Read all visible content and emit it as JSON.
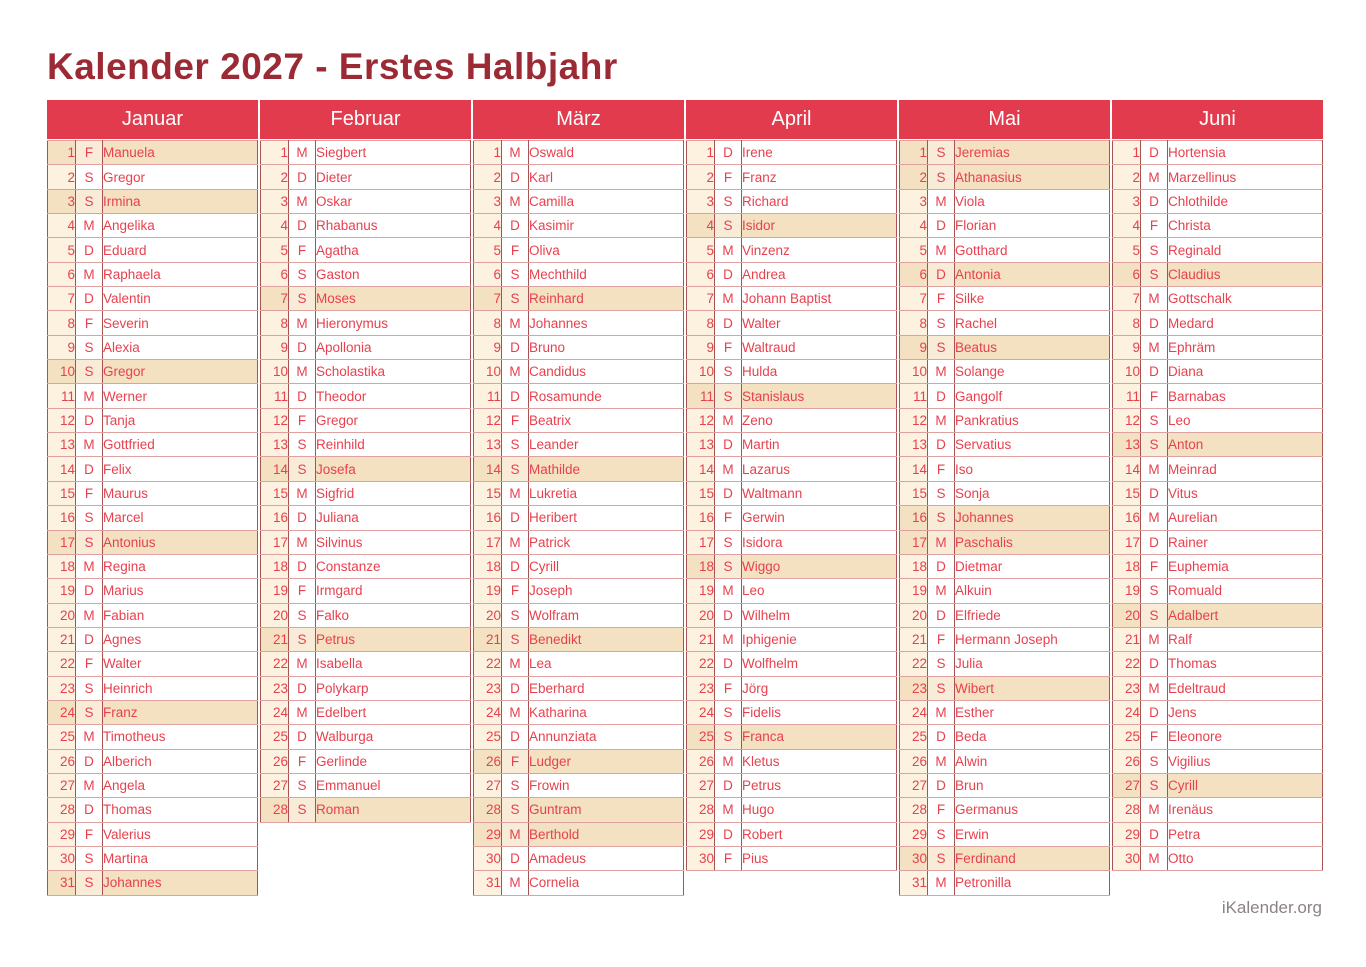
{
  "title": "Kalender 2027 - Erstes Halbjahr",
  "footer": "iKalender.org",
  "colors": {
    "header_bg": "#e23b4e",
    "title_text": "#9c2a34",
    "day_text": "#e8414e",
    "weekend_row_bg": "#f3e1c1",
    "number_column_bg": "#fcf2df",
    "grid_border": "#a95252",
    "footer_text": "#8b8382"
  },
  "months": [
    {
      "name": "Januar",
      "days": [
        {
          "d": 1,
          "w": "F",
          "n": "Manuela",
          "h": true
        },
        {
          "d": 2,
          "w": "S",
          "n": "Gregor",
          "h": false
        },
        {
          "d": 3,
          "w": "S",
          "n": "Irmina",
          "h": true
        },
        {
          "d": 4,
          "w": "M",
          "n": "Angelika",
          "h": false
        },
        {
          "d": 5,
          "w": "D",
          "n": "Eduard",
          "h": false
        },
        {
          "d": 6,
          "w": "M",
          "n": "Raphaela",
          "h": false
        },
        {
          "d": 7,
          "w": "D",
          "n": "Valentin",
          "h": false
        },
        {
          "d": 8,
          "w": "F",
          "n": "Severin",
          "h": false
        },
        {
          "d": 9,
          "w": "S",
          "n": "Alexia",
          "h": false
        },
        {
          "d": 10,
          "w": "S",
          "n": "Gregor",
          "h": true
        },
        {
          "d": 11,
          "w": "M",
          "n": "Werner",
          "h": false
        },
        {
          "d": 12,
          "w": "D",
          "n": "Tanja",
          "h": false
        },
        {
          "d": 13,
          "w": "M",
          "n": "Gottfried",
          "h": false
        },
        {
          "d": 14,
          "w": "D",
          "n": "Felix",
          "h": false
        },
        {
          "d": 15,
          "w": "F",
          "n": "Maurus",
          "h": false
        },
        {
          "d": 16,
          "w": "S",
          "n": "Marcel",
          "h": false
        },
        {
          "d": 17,
          "w": "S",
          "n": "Antonius",
          "h": true
        },
        {
          "d": 18,
          "w": "M",
          "n": "Regina",
          "h": false
        },
        {
          "d": 19,
          "w": "D",
          "n": "Marius",
          "h": false
        },
        {
          "d": 20,
          "w": "M",
          "n": "Fabian",
          "h": false
        },
        {
          "d": 21,
          "w": "D",
          "n": "Agnes",
          "h": false
        },
        {
          "d": 22,
          "w": "F",
          "n": "Walter",
          "h": false
        },
        {
          "d": 23,
          "w": "S",
          "n": "Heinrich",
          "h": false
        },
        {
          "d": 24,
          "w": "S",
          "n": "Franz",
          "h": true
        },
        {
          "d": 25,
          "w": "M",
          "n": "Timotheus",
          "h": false
        },
        {
          "d": 26,
          "w": "D",
          "n": "Alberich",
          "h": false
        },
        {
          "d": 27,
          "w": "M",
          "n": "Angela",
          "h": false
        },
        {
          "d": 28,
          "w": "D",
          "n": "Thomas",
          "h": false
        },
        {
          "d": 29,
          "w": "F",
          "n": "Valerius",
          "h": false
        },
        {
          "d": 30,
          "w": "S",
          "n": "Martina",
          "h": false
        },
        {
          "d": 31,
          "w": "S",
          "n": "Johannes",
          "h": true
        }
      ]
    },
    {
      "name": "Februar",
      "days": [
        {
          "d": 1,
          "w": "M",
          "n": "Siegbert",
          "h": false
        },
        {
          "d": 2,
          "w": "D",
          "n": "Dieter",
          "h": false
        },
        {
          "d": 3,
          "w": "M",
          "n": "Oskar",
          "h": false
        },
        {
          "d": 4,
          "w": "D",
          "n": "Rhabanus",
          "h": false
        },
        {
          "d": 5,
          "w": "F",
          "n": "Agatha",
          "h": false
        },
        {
          "d": 6,
          "w": "S",
          "n": "Gaston",
          "h": false
        },
        {
          "d": 7,
          "w": "S",
          "n": "Moses",
          "h": true
        },
        {
          "d": 8,
          "w": "M",
          "n": "Hieronymus",
          "h": false
        },
        {
          "d": 9,
          "w": "D",
          "n": "Apollonia",
          "h": false
        },
        {
          "d": 10,
          "w": "M",
          "n": "Scholastika",
          "h": false
        },
        {
          "d": 11,
          "w": "D",
          "n": "Theodor",
          "h": false
        },
        {
          "d": 12,
          "w": "F",
          "n": "Gregor",
          "h": false
        },
        {
          "d": 13,
          "w": "S",
          "n": "Reinhild",
          "h": false
        },
        {
          "d": 14,
          "w": "S",
          "n": "Josefa",
          "h": true
        },
        {
          "d": 15,
          "w": "M",
          "n": "Sigfrid",
          "h": false
        },
        {
          "d": 16,
          "w": "D",
          "n": "Juliana",
          "h": false
        },
        {
          "d": 17,
          "w": "M",
          "n": "Silvinus",
          "h": false
        },
        {
          "d": 18,
          "w": "D",
          "n": "Constanze",
          "h": false
        },
        {
          "d": 19,
          "w": "F",
          "n": "Irmgard",
          "h": false
        },
        {
          "d": 20,
          "w": "S",
          "n": "Falko",
          "h": false
        },
        {
          "d": 21,
          "w": "S",
          "n": "Petrus",
          "h": true
        },
        {
          "d": 22,
          "w": "M",
          "n": "Isabella",
          "h": false
        },
        {
          "d": 23,
          "w": "D",
          "n": "Polykarp",
          "h": false
        },
        {
          "d": 24,
          "w": "M",
          "n": "Edelbert",
          "h": false
        },
        {
          "d": 25,
          "w": "D",
          "n": "Walburga",
          "h": false
        },
        {
          "d": 26,
          "w": "F",
          "n": "Gerlinde",
          "h": false
        },
        {
          "d": 27,
          "w": "S",
          "n": "Emmanuel",
          "h": false
        },
        {
          "d": 28,
          "w": "S",
          "n": "Roman",
          "h": true
        }
      ]
    },
    {
      "name": "März",
      "days": [
        {
          "d": 1,
          "w": "M",
          "n": "Oswald",
          "h": false
        },
        {
          "d": 2,
          "w": "D",
          "n": "Karl",
          "h": false
        },
        {
          "d": 3,
          "w": "M",
          "n": "Camilla",
          "h": false
        },
        {
          "d": 4,
          "w": "D",
          "n": "Kasimir",
          "h": false
        },
        {
          "d": 5,
          "w": "F",
          "n": "Oliva",
          "h": false
        },
        {
          "d": 6,
          "w": "S",
          "n": "Mechthild",
          "h": false
        },
        {
          "d": 7,
          "w": "S",
          "n": "Reinhard",
          "h": true
        },
        {
          "d": 8,
          "w": "M",
          "n": "Johannes",
          "h": false
        },
        {
          "d": 9,
          "w": "D",
          "n": "Bruno",
          "h": false
        },
        {
          "d": 10,
          "w": "M",
          "n": "Candidus",
          "h": false
        },
        {
          "d": 11,
          "w": "D",
          "n": "Rosamunde",
          "h": false
        },
        {
          "d": 12,
          "w": "F",
          "n": "Beatrix",
          "h": false
        },
        {
          "d": 13,
          "w": "S",
          "n": "Leander",
          "h": false
        },
        {
          "d": 14,
          "w": "S",
          "n": "Mathilde",
          "h": true
        },
        {
          "d": 15,
          "w": "M",
          "n": "Lukretia",
          "h": false
        },
        {
          "d": 16,
          "w": "D",
          "n": "Heribert",
          "h": false
        },
        {
          "d": 17,
          "w": "M",
          "n": "Patrick",
          "h": false
        },
        {
          "d": 18,
          "w": "D",
          "n": "Cyrill",
          "h": false
        },
        {
          "d": 19,
          "w": "F",
          "n": "Joseph",
          "h": false
        },
        {
          "d": 20,
          "w": "S",
          "n": "Wolfram",
          "h": false
        },
        {
          "d": 21,
          "w": "S",
          "n": "Benedikt",
          "h": true
        },
        {
          "d": 22,
          "w": "M",
          "n": "Lea",
          "h": false
        },
        {
          "d": 23,
          "w": "D",
          "n": "Eberhard",
          "h": false
        },
        {
          "d": 24,
          "w": "M",
          "n": "Katharina",
          "h": false
        },
        {
          "d": 25,
          "w": "D",
          "n": "Annunziata",
          "h": false
        },
        {
          "d": 26,
          "w": "F",
          "n": "Ludger",
          "h": true
        },
        {
          "d": 27,
          "w": "S",
          "n": "Frowin",
          "h": false
        },
        {
          "d": 28,
          "w": "S",
          "n": "Guntram",
          "h": true
        },
        {
          "d": 29,
          "w": "M",
          "n": "Berthold",
          "h": true
        },
        {
          "d": 30,
          "w": "D",
          "n": "Amadeus",
          "h": false
        },
        {
          "d": 31,
          "w": "M",
          "n": "Cornelia",
          "h": false
        }
      ]
    },
    {
      "name": "April",
      "days": [
        {
          "d": 1,
          "w": "D",
          "n": "Irene",
          "h": false
        },
        {
          "d": 2,
          "w": "F",
          "n": "Franz",
          "h": false
        },
        {
          "d": 3,
          "w": "S",
          "n": "Richard",
          "h": false
        },
        {
          "d": 4,
          "w": "S",
          "n": "Isidor",
          "h": true
        },
        {
          "d": 5,
          "w": "M",
          "n": "Vinzenz",
          "h": false
        },
        {
          "d": 6,
          "w": "D",
          "n": "Andrea",
          "h": false
        },
        {
          "d": 7,
          "w": "M",
          "n": "Johann Baptist",
          "h": false
        },
        {
          "d": 8,
          "w": "D",
          "n": "Walter",
          "h": false
        },
        {
          "d": 9,
          "w": "F",
          "n": "Waltraud",
          "h": false
        },
        {
          "d": 10,
          "w": "S",
          "n": "Hulda",
          "h": false
        },
        {
          "d": 11,
          "w": "S",
          "n": "Stanislaus",
          "h": true
        },
        {
          "d": 12,
          "w": "M",
          "n": "Zeno",
          "h": false
        },
        {
          "d": 13,
          "w": "D",
          "n": "Martin",
          "h": false
        },
        {
          "d": 14,
          "w": "M",
          "n": "Lazarus",
          "h": false
        },
        {
          "d": 15,
          "w": "D",
          "n": "Waltmann",
          "h": false
        },
        {
          "d": 16,
          "w": "F",
          "n": "Gerwin",
          "h": false
        },
        {
          "d": 17,
          "w": "S",
          "n": "Isidora",
          "h": false
        },
        {
          "d": 18,
          "w": "S",
          "n": "Wiggo",
          "h": true
        },
        {
          "d": 19,
          "w": "M",
          "n": "Leo",
          "h": false
        },
        {
          "d": 20,
          "w": "D",
          "n": "Wilhelm",
          "h": false
        },
        {
          "d": 21,
          "w": "M",
          "n": "Iphigenie",
          "h": false
        },
        {
          "d": 22,
          "w": "D",
          "n": "Wolfhelm",
          "h": false
        },
        {
          "d": 23,
          "w": "F",
          "n": "Jörg",
          "h": false
        },
        {
          "d": 24,
          "w": "S",
          "n": "Fidelis",
          "h": false
        },
        {
          "d": 25,
          "w": "S",
          "n": "Franca",
          "h": true
        },
        {
          "d": 26,
          "w": "M",
          "n": "Kletus",
          "h": false
        },
        {
          "d": 27,
          "w": "D",
          "n": "Petrus",
          "h": false
        },
        {
          "d": 28,
          "w": "M",
          "n": "Hugo",
          "h": false
        },
        {
          "d": 29,
          "w": "D",
          "n": "Robert",
          "h": false
        },
        {
          "d": 30,
          "w": "F",
          "n": "Pius",
          "h": false
        }
      ]
    },
    {
      "name": "Mai",
      "days": [
        {
          "d": 1,
          "w": "S",
          "n": "Jeremias",
          "h": true
        },
        {
          "d": 2,
          "w": "S",
          "n": "Athanasius",
          "h": true
        },
        {
          "d": 3,
          "w": "M",
          "n": "Viola",
          "h": false
        },
        {
          "d": 4,
          "w": "D",
          "n": "Florian",
          "h": false
        },
        {
          "d": 5,
          "w": "M",
          "n": "Gotthard",
          "h": false
        },
        {
          "d": 6,
          "w": "D",
          "n": "Antonia",
          "h": true
        },
        {
          "d": 7,
          "w": "F",
          "n": "Silke",
          "h": false
        },
        {
          "d": 8,
          "w": "S",
          "n": "Rachel",
          "h": false
        },
        {
          "d": 9,
          "w": "S",
          "n": "Beatus",
          "h": true
        },
        {
          "d": 10,
          "w": "M",
          "n": "Solange",
          "h": false
        },
        {
          "d": 11,
          "w": "D",
          "n": "Gangolf",
          "h": false
        },
        {
          "d": 12,
          "w": "M",
          "n": "Pankratius",
          "h": false
        },
        {
          "d": 13,
          "w": "D",
          "n": "Servatius",
          "h": false
        },
        {
          "d": 14,
          "w": "F",
          "n": "Iso",
          "h": false
        },
        {
          "d": 15,
          "w": "S",
          "n": "Sonja",
          "h": false
        },
        {
          "d": 16,
          "w": "S",
          "n": "Johannes",
          "h": true
        },
        {
          "d": 17,
          "w": "M",
          "n": "Paschalis",
          "h": true
        },
        {
          "d": 18,
          "w": "D",
          "n": "Dietmar",
          "h": false
        },
        {
          "d": 19,
          "w": "M",
          "n": "Alkuin",
          "h": false
        },
        {
          "d": 20,
          "w": "D",
          "n": "Elfriede",
          "h": false
        },
        {
          "d": 21,
          "w": "F",
          "n": "Hermann Joseph",
          "h": false
        },
        {
          "d": 22,
          "w": "S",
          "n": "Julia",
          "h": false
        },
        {
          "d": 23,
          "w": "S",
          "n": "Wibert",
          "h": true
        },
        {
          "d": 24,
          "w": "M",
          "n": "Esther",
          "h": false
        },
        {
          "d": 25,
          "w": "D",
          "n": "Beda",
          "h": false
        },
        {
          "d": 26,
          "w": "M",
          "n": "Alwin",
          "h": false
        },
        {
          "d": 27,
          "w": "D",
          "n": "Brun",
          "h": false
        },
        {
          "d": 28,
          "w": "F",
          "n": "Germanus",
          "h": false
        },
        {
          "d": 29,
          "w": "S",
          "n": "Erwin",
          "h": false
        },
        {
          "d": 30,
          "w": "S",
          "n": "Ferdinand",
          "h": true
        },
        {
          "d": 31,
          "w": "M",
          "n": "Petronilla",
          "h": false
        }
      ]
    },
    {
      "name": "Juni",
      "days": [
        {
          "d": 1,
          "w": "D",
          "n": "Hortensia",
          "h": false
        },
        {
          "d": 2,
          "w": "M",
          "n": "Marzellinus",
          "h": false
        },
        {
          "d": 3,
          "w": "D",
          "n": "Chlothilde",
          "h": false
        },
        {
          "d": 4,
          "w": "F",
          "n": "Christa",
          "h": false
        },
        {
          "d": 5,
          "w": "S",
          "n": "Reginald",
          "h": false
        },
        {
          "d": 6,
          "w": "S",
          "n": "Claudius",
          "h": true
        },
        {
          "d": 7,
          "w": "M",
          "n": "Gottschalk",
          "h": false
        },
        {
          "d": 8,
          "w": "D",
          "n": "Medard",
          "h": false
        },
        {
          "d": 9,
          "w": "M",
          "n": "Ephräm",
          "h": false
        },
        {
          "d": 10,
          "w": "D",
          "n": "Diana",
          "h": false
        },
        {
          "d": 11,
          "w": "F",
          "n": "Barnabas",
          "h": false
        },
        {
          "d": 12,
          "w": "S",
          "n": "Leo",
          "h": false
        },
        {
          "d": 13,
          "w": "S",
          "n": "Anton",
          "h": true
        },
        {
          "d": 14,
          "w": "M",
          "n": "Meinrad",
          "h": false
        },
        {
          "d": 15,
          "w": "D",
          "n": "Vitus",
          "h": false
        },
        {
          "d": 16,
          "w": "M",
          "n": "Aurelian",
          "h": false
        },
        {
          "d": 17,
          "w": "D",
          "n": "Rainer",
          "h": false
        },
        {
          "d": 18,
          "w": "F",
          "n": "Euphemia",
          "h": false
        },
        {
          "d": 19,
          "w": "S",
          "n": "Romuald",
          "h": false
        },
        {
          "d": 20,
          "w": "S",
          "n": "Adalbert",
          "h": true
        },
        {
          "d": 21,
          "w": "M",
          "n": "Ralf",
          "h": false
        },
        {
          "d": 22,
          "w": "D",
          "n": "Thomas",
          "h": false
        },
        {
          "d": 23,
          "w": "M",
          "n": "Edeltraud",
          "h": false
        },
        {
          "d": 24,
          "w": "D",
          "n": "Jens",
          "h": false
        },
        {
          "d": 25,
          "w": "F",
          "n": "Eleonore",
          "h": false
        },
        {
          "d": 26,
          "w": "S",
          "n": "Vigilius",
          "h": false
        },
        {
          "d": 27,
          "w": "S",
          "n": "Cyrill",
          "h": true
        },
        {
          "d": 28,
          "w": "M",
          "n": "Irenäus",
          "h": false
        },
        {
          "d": 29,
          "w": "D",
          "n": "Petra",
          "h": false
        },
        {
          "d": 30,
          "w": "M",
          "n": "Otto",
          "h": false
        }
      ]
    }
  ]
}
